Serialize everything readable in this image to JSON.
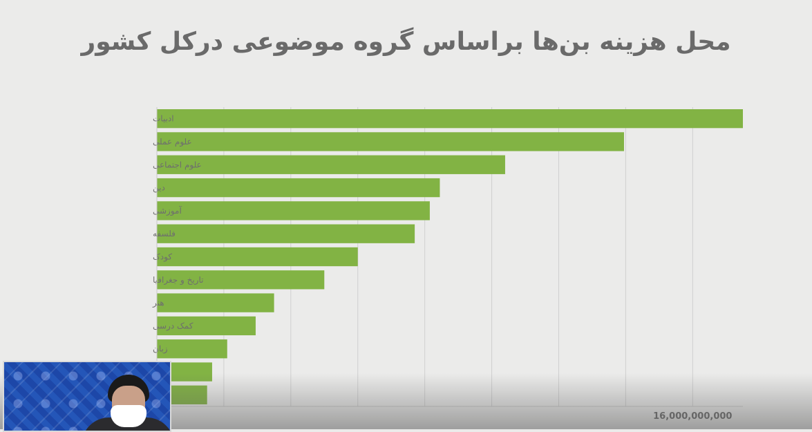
{
  "chart_data": {
    "type": "bar",
    "orientation": "horizontal",
    "title": "محل هزینه بن‌ها براساس گروه موضوعی درکل کشور",
    "categories": [
      "ادبیات",
      "علوم عملی",
      "علوم اجتماعی",
      "دین",
      "آموزشی",
      "فلسفه",
      "کودک",
      "تاریخ و جغرافیا",
      "هنر",
      "کمک درسی",
      "زبان",
      "",
      ""
    ],
    "values": [
      17500000000,
      13950000000,
      10400000000,
      8450000000,
      8150000000,
      7700000000,
      6000000000,
      5000000000,
      3500000000,
      2950000000,
      2100000000,
      1650000000,
      1500000000
    ],
    "xlim": [
      0,
      17500000000
    ],
    "xtick_interval": 2000000000,
    "visible_tick_label": "16,000,000,000",
    "visible_tick_value": 16000000000,
    "grid": true,
    "bar_color": "#82b344"
  }
}
